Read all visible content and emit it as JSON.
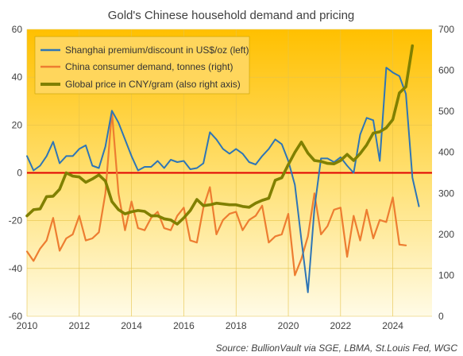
{
  "chart_data": {
    "type": "line",
    "title": "Gold's Chinese household  demand and pricing",
    "source": "Source: BullionVault via SGE, LBMA, St.Louis Fed, WGC",
    "x_axis": {
      "range": [
        2010,
        2025.5
      ],
      "ticks": [
        "2010",
        "2012",
        "2014",
        "2016",
        "2018",
        "2020",
        "2022",
        "2024"
      ]
    },
    "y_left": {
      "range": [
        -60,
        60
      ],
      "ticks": [
        "-60",
        "-40",
        "-20",
        "0",
        "20",
        "40",
        "60"
      ]
    },
    "y_right": {
      "range": [
        0,
        700
      ],
      "ticks": [
        "0",
        "100",
        "200",
        "300",
        "400",
        "500",
        "600",
        "700"
      ]
    },
    "zero_line": {
      "value": 0,
      "color": "#e00000"
    },
    "legend_placement": "top-left",
    "series": [
      {
        "name": "Shanghai premium/discount in US$/oz (left)",
        "axis": "left",
        "color": "#2e75b6",
        "points": [
          [
            2010.0,
            7
          ],
          [
            2010.25,
            1
          ],
          [
            2010.5,
            3
          ],
          [
            2010.75,
            7
          ],
          [
            2011.0,
            13
          ],
          [
            2011.25,
            4
          ],
          [
            2011.5,
            7
          ],
          [
            2011.75,
            7
          ],
          [
            2012.0,
            10
          ],
          [
            2012.25,
            11.5
          ],
          [
            2012.5,
            3
          ],
          [
            2012.75,
            2
          ],
          [
            2013.0,
            11
          ],
          [
            2013.25,
            26
          ],
          [
            2013.5,
            21
          ],
          [
            2013.75,
            14
          ],
          [
            2014.0,
            7
          ],
          [
            2014.25,
            1
          ],
          [
            2014.5,
            2.5
          ],
          [
            2014.75,
            2.5
          ],
          [
            2015.0,
            5
          ],
          [
            2015.25,
            2
          ],
          [
            2015.5,
            5.5
          ],
          [
            2015.75,
            4.5
          ],
          [
            2016.0,
            5
          ],
          [
            2016.25,
            1.5
          ],
          [
            2016.5,
            2
          ],
          [
            2016.75,
            4
          ],
          [
            2017.0,
            17
          ],
          [
            2017.25,
            14
          ],
          [
            2017.5,
            10
          ],
          [
            2017.75,
            8
          ],
          [
            2018.0,
            10
          ],
          [
            2018.25,
            8
          ],
          [
            2018.5,
            4.5
          ],
          [
            2018.75,
            3.5
          ],
          [
            2019.0,
            7
          ],
          [
            2019.25,
            10
          ],
          [
            2019.5,
            14
          ],
          [
            2019.75,
            12
          ],
          [
            2020.0,
            5
          ],
          [
            2020.25,
            -5
          ],
          [
            2020.5,
            -28
          ],
          [
            2020.75,
            -50
          ],
          [
            2021.0,
            -15
          ],
          [
            2021.25,
            6
          ],
          [
            2021.5,
            6
          ],
          [
            2021.75,
            4.5
          ],
          [
            2022.0,
            6.5
          ],
          [
            2022.25,
            3
          ],
          [
            2022.5,
            0
          ],
          [
            2022.75,
            16
          ],
          [
            2023.0,
            23
          ],
          [
            2023.25,
            22
          ],
          [
            2023.5,
            5
          ],
          [
            2023.75,
            44
          ],
          [
            2024.0,
            42
          ],
          [
            2024.25,
            40.5
          ],
          [
            2024.5,
            33
          ],
          [
            2024.75,
            -2
          ],
          [
            2025.0,
            -14
          ]
        ]
      },
      {
        "name": "China consumer demand, tonnes (right)",
        "axis": "right",
        "color": "#ed7d31",
        "points": [
          [
            2010.0,
            158
          ],
          [
            2010.25,
            135
          ],
          [
            2010.5,
            165
          ],
          [
            2010.75,
            185
          ],
          [
            2011.0,
            240
          ],
          [
            2011.25,
            160
          ],
          [
            2011.5,
            190
          ],
          [
            2011.75,
            200
          ],
          [
            2012.0,
            245
          ],
          [
            2012.25,
            185
          ],
          [
            2012.5,
            190
          ],
          [
            2012.75,
            205
          ],
          [
            2013.0,
            300
          ],
          [
            2013.25,
            500
          ],
          [
            2013.5,
            300
          ],
          [
            2013.75,
            210
          ],
          [
            2014.0,
            280
          ],
          [
            2014.25,
            215
          ],
          [
            2014.5,
            210
          ],
          [
            2014.75,
            240
          ],
          [
            2015.0,
            255
          ],
          [
            2015.25,
            215
          ],
          [
            2015.5,
            210
          ],
          [
            2015.75,
            245
          ],
          [
            2016.0,
            265
          ],
          [
            2016.25,
            185
          ],
          [
            2016.5,
            180
          ],
          [
            2016.75,
            265
          ],
          [
            2017.0,
            315
          ],
          [
            2017.25,
            200
          ],
          [
            2017.5,
            235
          ],
          [
            2017.75,
            250
          ],
          [
            2018.0,
            255
          ],
          [
            2018.25,
            210
          ],
          [
            2018.5,
            235
          ],
          [
            2018.75,
            245
          ],
          [
            2019.0,
            270
          ],
          [
            2019.25,
            180
          ],
          [
            2019.5,
            195
          ],
          [
            2019.75,
            200
          ],
          [
            2020.0,
            250
          ],
          [
            2020.25,
            100
          ],
          [
            2020.5,
            140
          ],
          [
            2020.75,
            195
          ],
          [
            2021.0,
            300
          ],
          [
            2021.25,
            200
          ],
          [
            2021.5,
            220
          ],
          [
            2021.75,
            260
          ],
          [
            2022.0,
            265
          ],
          [
            2022.25,
            145
          ],
          [
            2022.5,
            245
          ],
          [
            2022.75,
            185
          ],
          [
            2023.0,
            260
          ],
          [
            2023.25,
            190
          ],
          [
            2023.5,
            235
          ],
          [
            2023.75,
            230
          ],
          [
            2024.0,
            290
          ],
          [
            2024.25,
            175
          ],
          [
            2024.5,
            173
          ]
        ]
      },
      {
        "name": "Global price in CNY/gram (also right axis)",
        "axis": "right",
        "color": "#808000",
        "points": [
          [
            2010.0,
            245
          ],
          [
            2010.25,
            260
          ],
          [
            2010.5,
            262
          ],
          [
            2010.75,
            292
          ],
          [
            2011.0,
            293
          ],
          [
            2011.25,
            310
          ],
          [
            2011.5,
            350
          ],
          [
            2011.75,
            342
          ],
          [
            2012.0,
            340
          ],
          [
            2012.25,
            327
          ],
          [
            2012.5,
            335
          ],
          [
            2012.75,
            345
          ],
          [
            2013.0,
            330
          ],
          [
            2013.25,
            280
          ],
          [
            2013.5,
            260
          ],
          [
            2013.75,
            250
          ],
          [
            2014.0,
            255
          ],
          [
            2014.25,
            258
          ],
          [
            2014.5,
            256
          ],
          [
            2014.75,
            245
          ],
          [
            2015.0,
            245
          ],
          [
            2015.25,
            238
          ],
          [
            2015.5,
            235
          ],
          [
            2015.75,
            225
          ],
          [
            2016.0,
            240
          ],
          [
            2016.25,
            258
          ],
          [
            2016.5,
            285
          ],
          [
            2016.75,
            270
          ],
          [
            2017.0,
            272
          ],
          [
            2017.25,
            276
          ],
          [
            2017.5,
            274
          ],
          [
            2017.75,
            272
          ],
          [
            2018.0,
            272
          ],
          [
            2018.25,
            268
          ],
          [
            2018.5,
            266
          ],
          [
            2018.75,
            276
          ],
          [
            2019.0,
            283
          ],
          [
            2019.25,
            288
          ],
          [
            2019.5,
            332
          ],
          [
            2019.75,
            338
          ],
          [
            2020.0,
            370
          ],
          [
            2020.25,
            400
          ],
          [
            2020.5,
            425
          ],
          [
            2020.75,
            398
          ],
          [
            2021.0,
            380
          ],
          [
            2021.25,
            378
          ],
          [
            2021.5,
            373
          ],
          [
            2021.75,
            372
          ],
          [
            2022.0,
            380
          ],
          [
            2022.25,
            395
          ],
          [
            2022.5,
            380
          ],
          [
            2022.75,
            397
          ],
          [
            2023.0,
            418
          ],
          [
            2023.25,
            447
          ],
          [
            2023.5,
            450
          ],
          [
            2023.75,
            460
          ],
          [
            2024.0,
            480
          ],
          [
            2024.25,
            545
          ],
          [
            2024.5,
            560
          ],
          [
            2024.75,
            660
          ]
        ]
      }
    ]
  }
}
